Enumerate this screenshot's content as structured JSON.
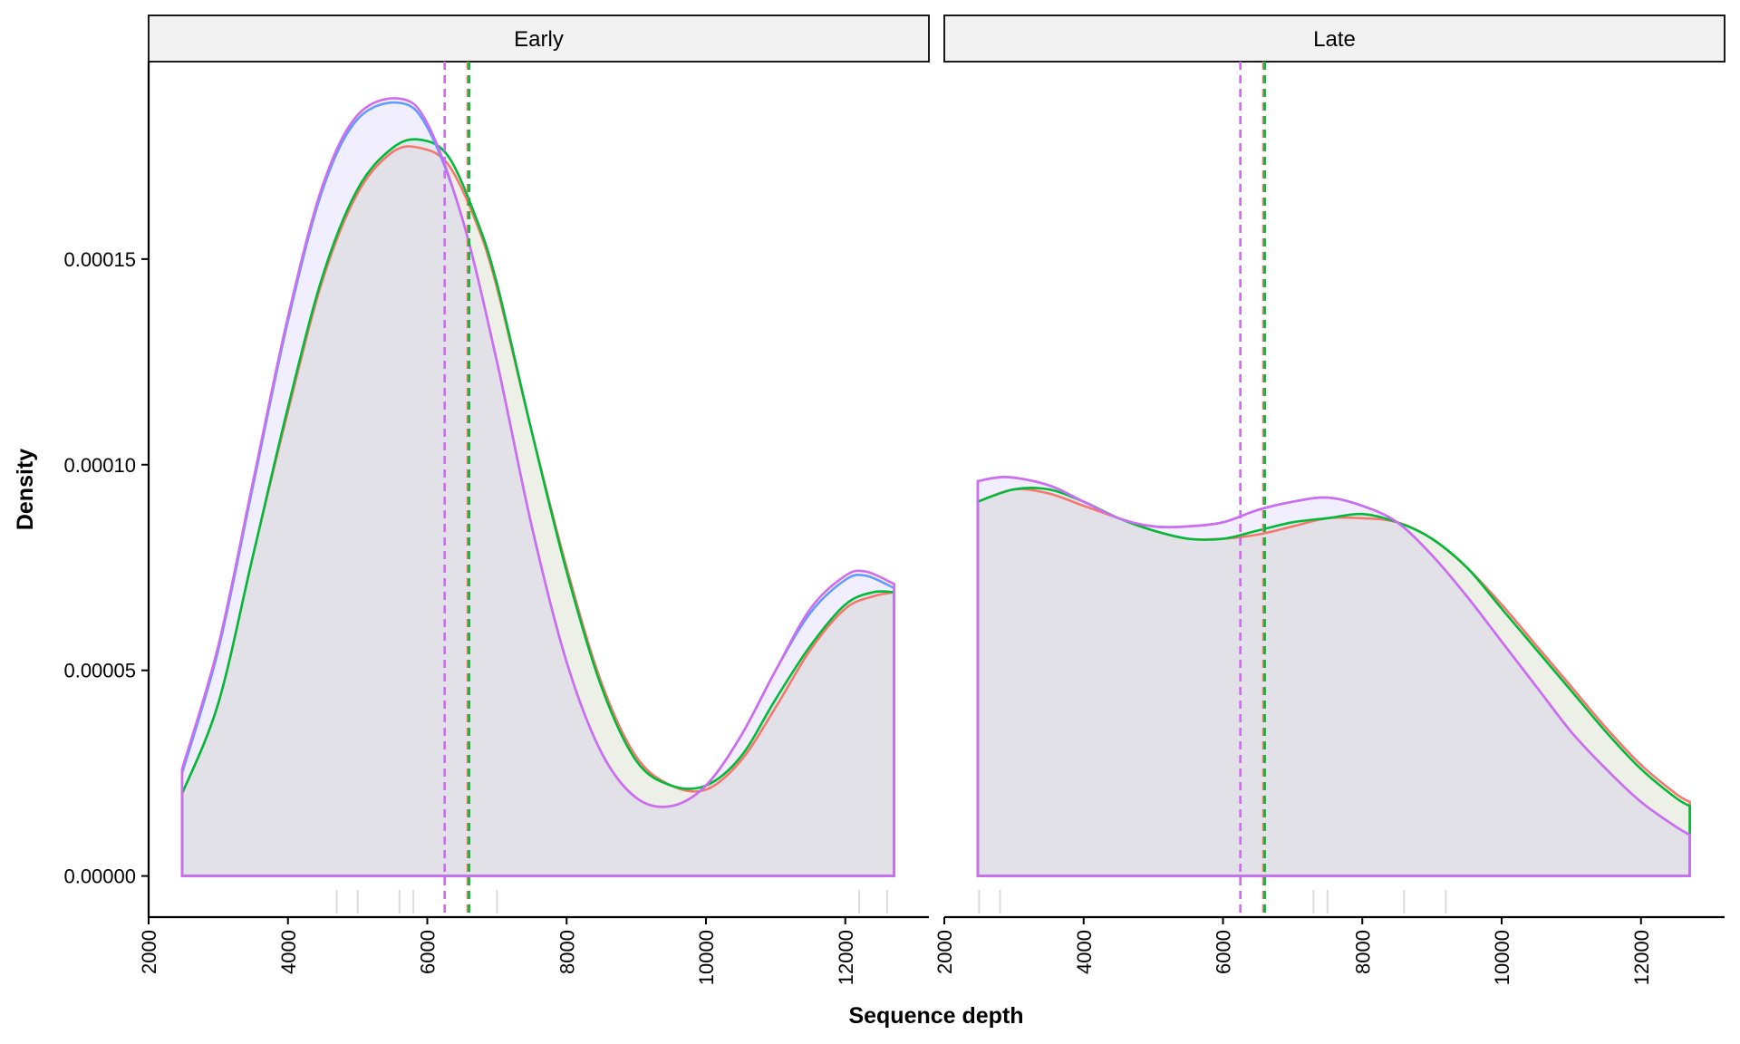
{
  "chart_data": {
    "type": "area",
    "xlabel": "Sequence depth",
    "ylabel": "Density",
    "xlim": [
      2000,
      13200
    ],
    "ylim": [
      -1e-05,
      0.000198
    ],
    "x_ticks": [
      2000,
      4000,
      6000,
      8000,
      10000,
      12000
    ],
    "y_ticks": [
      0,
      5e-05,
      0.0001,
      0.00015
    ],
    "y_tick_labels": [
      "0.00000",
      "0.00005",
      "0.00010",
      "0.00015"
    ],
    "grid": false,
    "legend": "none",
    "series_colors": [
      "#F8766D",
      "#00BA38",
      "#619CFF",
      "#D06CF0"
    ],
    "fill_colors": [
      "#F8766D",
      "#00BA38",
      "#619CFF",
      "#D06CF0"
    ],
    "panels": [
      {
        "label": "Early",
        "series": [
          {
            "color": "#F8766D",
            "mean": 6580,
            "points": [
              [
                2480,
                2e-05
              ],
              [
                3000,
                4.2e-05
              ],
              [
                3500,
                7.8e-05
              ],
              [
                4000,
                0.000113
              ],
              [
                4500,
                0.000145
              ],
              [
                5000,
                0.000166
              ],
              [
                5500,
                0.000176
              ],
              [
                5900,
                0.000177
              ],
              [
                6300,
                0.000173
              ],
              [
                6700,
                0.000159
              ],
              [
                7000,
                0.000143
              ],
              [
                7500,
                0.000108
              ],
              [
                8000,
                7.5e-05
              ],
              [
                8500,
                4.7e-05
              ],
              [
                9000,
                2.9e-05
              ],
              [
                9500,
                2.2e-05
              ],
              [
                10000,
                2.1e-05
              ],
              [
                10500,
                2.8e-05
              ],
              [
                11000,
                4.1e-05
              ],
              [
                11500,
                5.5e-05
              ],
              [
                12000,
                6.5e-05
              ],
              [
                12400,
                6.8e-05
              ],
              [
                12700,
                6.9e-05
              ]
            ]
          },
          {
            "color": "#00BA38",
            "mean": 6600,
            "points": [
              [
                2480,
                2e-05
              ],
              [
                3000,
                4.2e-05
              ],
              [
                3500,
                7.8e-05
              ],
              [
                4000,
                0.000114
              ],
              [
                4500,
                0.000146
              ],
              [
                5000,
                0.000167
              ],
              [
                5500,
                0.000177
              ],
              [
                5900,
                0.000179
              ],
              [
                6300,
                0.000175
              ],
              [
                6700,
                0.00016
              ],
              [
                7000,
                0.000144
              ],
              [
                7500,
                0.000108
              ],
              [
                8000,
                7.4e-05
              ],
              [
                8500,
                4.6e-05
              ],
              [
                9000,
                2.8e-05
              ],
              [
                9500,
                2.2e-05
              ],
              [
                10000,
                2.2e-05
              ],
              [
                10500,
                2.9e-05
              ],
              [
                11000,
                4.3e-05
              ],
              [
                11500,
                5.6e-05
              ],
              [
                12000,
                6.6e-05
              ],
              [
                12400,
                6.9e-05
              ],
              [
                12700,
                6.9e-05
              ]
            ]
          },
          {
            "color": "#619CFF",
            "mean": 6250,
            "points": [
              [
                2480,
                2.5e-05
              ],
              [
                3000,
                5.5e-05
              ],
              [
                3500,
                9.5e-05
              ],
              [
                4000,
                0.000135
              ],
              [
                4500,
                0.000167
              ],
              [
                5000,
                0.000184
              ],
              [
                5600,
                0.000188
              ],
              [
                6000,
                0.000182
              ],
              [
                6500,
                0.00016
              ],
              [
                7000,
                0.000125
              ],
              [
                7500,
                8.5e-05
              ],
              [
                8000,
                5.2e-05
              ],
              [
                8500,
                3e-05
              ],
              [
                9000,
                1.9e-05
              ],
              [
                9500,
                1.7e-05
              ],
              [
                10000,
                2.2e-05
              ],
              [
                10500,
                3.4e-05
              ],
              [
                11000,
                5e-05
              ],
              [
                11500,
                6.4e-05
              ],
              [
                12000,
                7.2e-05
              ],
              [
                12300,
                7.3e-05
              ],
              [
                12700,
                7e-05
              ]
            ]
          },
          {
            "color": "#D06CF0",
            "mean": 6250,
            "points": [
              [
                2480,
                2.6e-05
              ],
              [
                3000,
                5.6e-05
              ],
              [
                3500,
                9.6e-05
              ],
              [
                4000,
                0.000136
              ],
              [
                4500,
                0.000168
              ],
              [
                5000,
                0.000185
              ],
              [
                5600,
                0.000189
              ],
              [
                6000,
                0.000183
              ],
              [
                6500,
                0.00016
              ],
              [
                7000,
                0.000125
              ],
              [
                7500,
                8.5e-05
              ],
              [
                8000,
                5.2e-05
              ],
              [
                8500,
                3e-05
              ],
              [
                9000,
                1.9e-05
              ],
              [
                9500,
                1.7e-05
              ],
              [
                10000,
                2.2e-05
              ],
              [
                10500,
                3.4e-05
              ],
              [
                11000,
                5e-05
              ],
              [
                11500,
                6.5e-05
              ],
              [
                12000,
                7.3e-05
              ],
              [
                12300,
                7.4e-05
              ],
              [
                12700,
                7.1e-05
              ]
            ]
          }
        ],
        "rug_x": [
          4700,
          5000,
          5600,
          5800,
          7000,
          12200,
          12600
        ]
      },
      {
        "label": "Late",
        "series": [
          {
            "color": "#F8766D",
            "mean": 6580,
            "points": [
              [
                2480,
                9.1e-05
              ],
              [
                3000,
                9.4e-05
              ],
              [
                3500,
                9.3e-05
              ],
              [
                4000,
                9e-05
              ],
              [
                4500,
                8.7e-05
              ],
              [
                5000,
                8.4e-05
              ],
              [
                5500,
                8.2e-05
              ],
              [
                6000,
                8.2e-05
              ],
              [
                6500,
                8.3e-05
              ],
              [
                7000,
                8.5e-05
              ],
              [
                7500,
                8.7e-05
              ],
              [
                8000,
                8.7e-05
              ],
              [
                8500,
                8.6e-05
              ],
              [
                9000,
                8.2e-05
              ],
              [
                9500,
                7.5e-05
              ],
              [
                10000,
                6.6e-05
              ],
              [
                10500,
                5.6e-05
              ],
              [
                11000,
                4.6e-05
              ],
              [
                11500,
                3.6e-05
              ],
              [
                12000,
                2.7e-05
              ],
              [
                12500,
                2e-05
              ],
              [
                12700,
                1.8e-05
              ]
            ]
          },
          {
            "color": "#00BA38",
            "mean": 6600,
            "points": [
              [
                2480,
                9.1e-05
              ],
              [
                3000,
                9.4e-05
              ],
              [
                3500,
                9.4e-05
              ],
              [
                4000,
                9.1e-05
              ],
              [
                4500,
                8.7e-05
              ],
              [
                5000,
                8.4e-05
              ],
              [
                5500,
                8.2e-05
              ],
              [
                6000,
                8.2e-05
              ],
              [
                6500,
                8.4e-05
              ],
              [
                7000,
                8.6e-05
              ],
              [
                7500,
                8.7e-05
              ],
              [
                8000,
                8.8e-05
              ],
              [
                8500,
                8.6e-05
              ],
              [
                9000,
                8.2e-05
              ],
              [
                9500,
                7.5e-05
              ],
              [
                10000,
                6.5e-05
              ],
              [
                10500,
                5.5e-05
              ],
              [
                11000,
                4.5e-05
              ],
              [
                11500,
                3.5e-05
              ],
              [
                12000,
                2.6e-05
              ],
              [
                12500,
                1.9e-05
              ],
              [
                12700,
                1.7e-05
              ]
            ]
          },
          {
            "color": "#619CFF",
            "mean": 6250,
            "points": [
              [
                2480,
                9.6e-05
              ],
              [
                2900,
                9.7e-05
              ],
              [
                3500,
                9.5e-05
              ],
              [
                4000,
                9.1e-05
              ],
              [
                4500,
                8.7e-05
              ],
              [
                5000,
                8.5e-05
              ],
              [
                5500,
                8.5e-05
              ],
              [
                6000,
                8.6e-05
              ],
              [
                6500,
                8.9e-05
              ],
              [
                7000,
                9.1e-05
              ],
              [
                7500,
                9.2e-05
              ],
              [
                8000,
                9e-05
              ],
              [
                8500,
                8.6e-05
              ],
              [
                9000,
                7.8e-05
              ],
              [
                9500,
                6.8e-05
              ],
              [
                10000,
                5.7e-05
              ],
              [
                10500,
                4.6e-05
              ],
              [
                11000,
                3.5e-05
              ],
              [
                11500,
                2.6e-05
              ],
              [
                12000,
                1.8e-05
              ],
              [
                12500,
                1.2e-05
              ],
              [
                12700,
                1e-05
              ]
            ]
          },
          {
            "color": "#D06CF0",
            "mean": 6250,
            "points": [
              [
                2480,
                9.6e-05
              ],
              [
                2900,
                9.7e-05
              ],
              [
                3500,
                9.5e-05
              ],
              [
                4000,
                9.1e-05
              ],
              [
                4500,
                8.7e-05
              ],
              [
                5000,
                8.5e-05
              ],
              [
                5500,
                8.5e-05
              ],
              [
                6000,
                8.6e-05
              ],
              [
                6500,
                8.9e-05
              ],
              [
                7000,
                9.1e-05
              ],
              [
                7500,
                9.2e-05
              ],
              [
                8000,
                9e-05
              ],
              [
                8500,
                8.6e-05
              ],
              [
                9000,
                7.8e-05
              ],
              [
                9500,
                6.8e-05
              ],
              [
                10000,
                5.7e-05
              ],
              [
                10500,
                4.6e-05
              ],
              [
                11000,
                3.5e-05
              ],
              [
                11500,
                2.6e-05
              ],
              [
                12000,
                1.8e-05
              ],
              [
                12500,
                1.2e-05
              ],
              [
                12700,
                1e-05
              ]
            ]
          }
        ],
        "rug_x": [
          2500,
          2800,
          7300,
          7500,
          8600,
          9200
        ]
      }
    ]
  }
}
